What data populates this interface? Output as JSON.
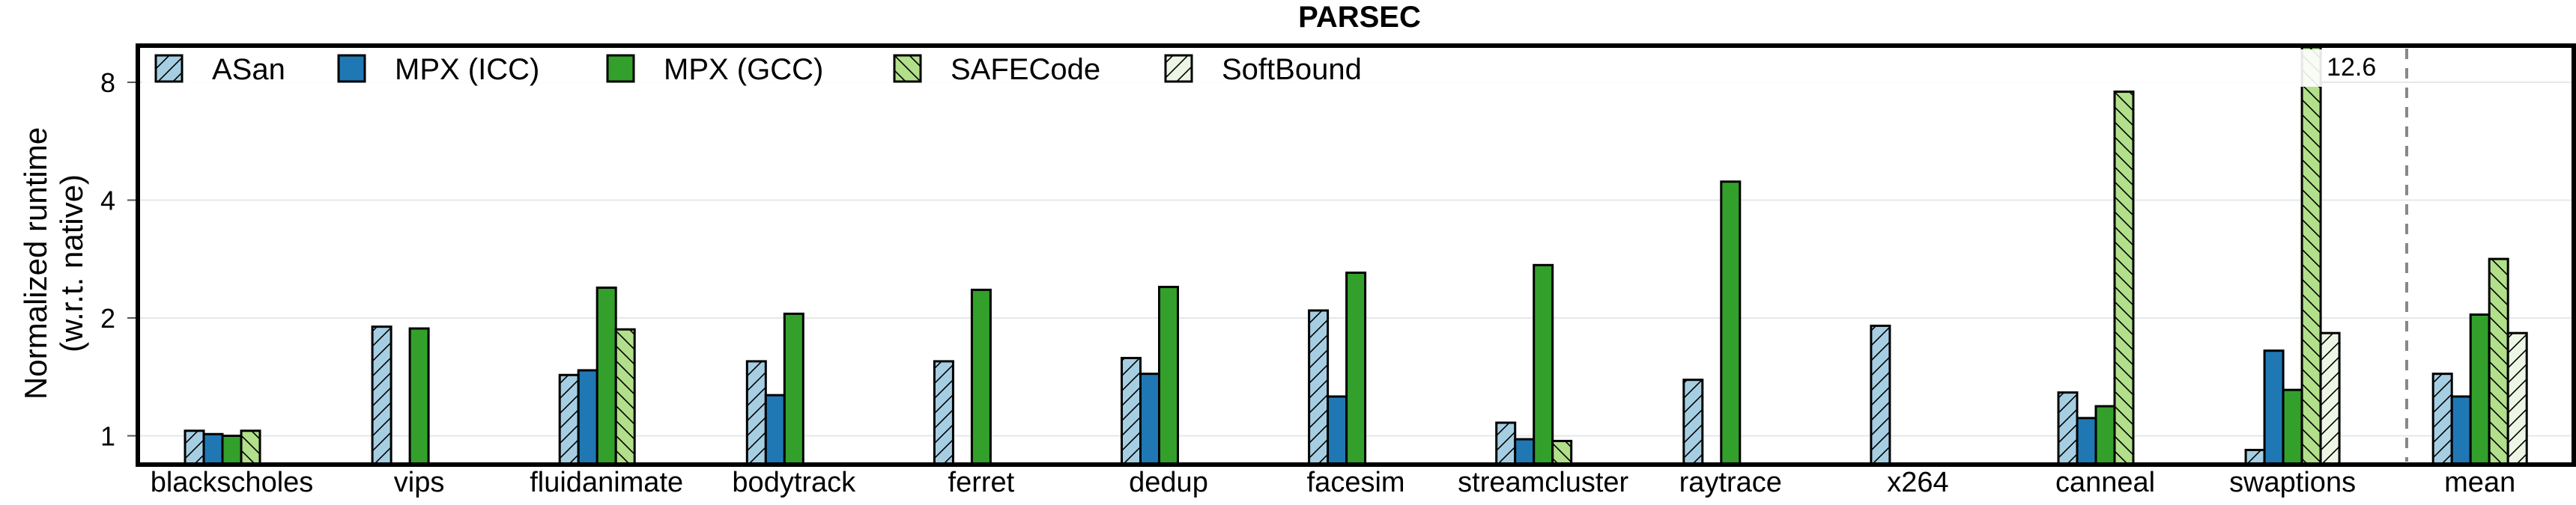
{
  "chart_data": {
    "type": "bar",
    "title": "PARSEC",
    "xlabel": "",
    "ylabel": [
      "Normalized runtime",
      "(w.r.t. native)"
    ],
    "yscale": "log2",
    "ylim": [
      0.85,
      9.9
    ],
    "yticks": [
      1,
      2,
      4,
      8
    ],
    "grid": true,
    "legend_position": "top-inside",
    "categories": [
      "blackscholes",
      "vips",
      "fluidanimate",
      "bodytrack",
      "ferret",
      "dedup",
      "facesim",
      "streamcluster",
      "raytrace",
      "x264",
      "canneal",
      "swaptions",
      "mean"
    ],
    "series": [
      {
        "name": "ASan",
        "color": "#a6cee3",
        "hatch": "/",
        "values": [
          1.03,
          1.9,
          1.43,
          1.55,
          1.55,
          1.58,
          2.09,
          1.08,
          1.39,
          1.91,
          1.29,
          0.92,
          1.44
        ]
      },
      {
        "name": "MPX (ICC)",
        "color": "#1f78b4",
        "hatch": "",
        "values": [
          1.01,
          null,
          1.47,
          1.27,
          null,
          1.44,
          1.26,
          0.98,
          null,
          null,
          1.11,
          1.65,
          1.26
        ]
      },
      {
        "name": "MPX (GCC)",
        "color": "#33a02c",
        "hatch": "",
        "values": [
          1.0,
          1.88,
          2.39,
          2.05,
          2.36,
          2.4,
          2.61,
          2.73,
          4.46,
          null,
          1.19,
          1.31,
          2.04
        ]
      },
      {
        "name": "SAFECode",
        "color": "#b2df8a",
        "hatch": "\\",
        "values": [
          1.03,
          null,
          1.87,
          null,
          null,
          null,
          null,
          0.97,
          null,
          null,
          7.57,
          12.6,
          2.83
        ]
      },
      {
        "name": "SoftBound",
        "color": "#edf6e4",
        "hatch": "/",
        "values": [
          null,
          null,
          null,
          null,
          null,
          null,
          null,
          null,
          null,
          null,
          null,
          1.83,
          1.83
        ]
      }
    ],
    "annotations": [
      {
        "text": "12.6",
        "category": "swaptions",
        "series": "SAFECode"
      }
    ],
    "separator_before": "mean"
  }
}
